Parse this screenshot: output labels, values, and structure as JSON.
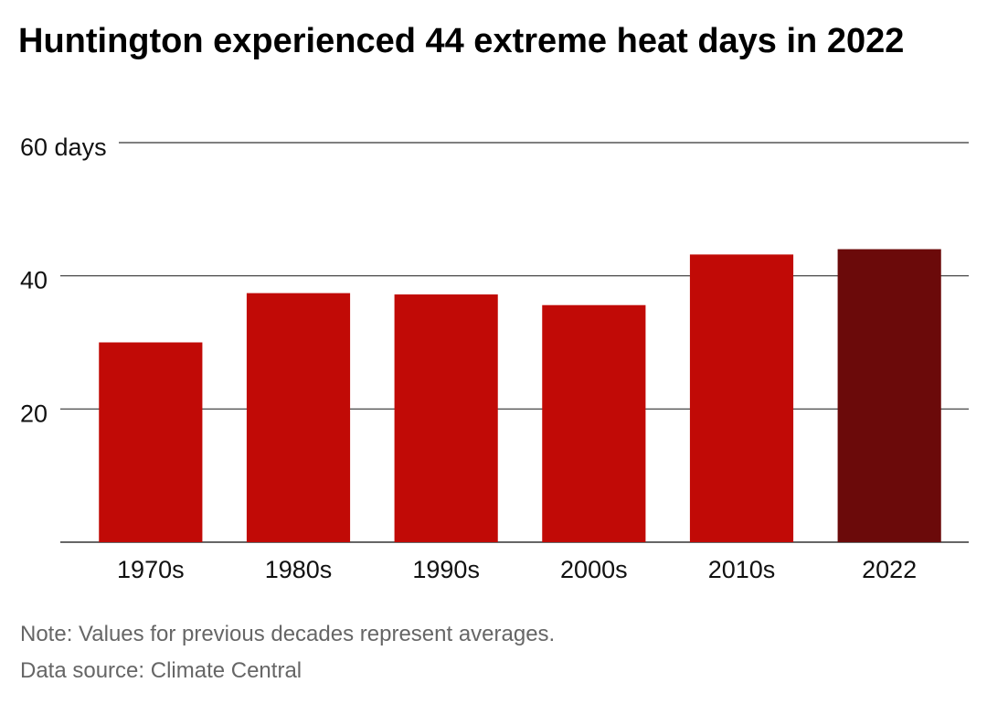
{
  "title": "Huntington experienced 44 extreme heat days in 2022",
  "colors": {
    "bar": "#c10a06",
    "highlight": "#6b0a0a",
    "grid": "#333333",
    "axis_text": "#111111",
    "note_text": "#666666"
  },
  "chart_data": {
    "type": "bar",
    "title": "Huntington experienced 44 extreme heat days in 2022",
    "categories": [
      "1970s",
      "1980s",
      "1990s",
      "2000s",
      "2010s",
      "2022"
    ],
    "values": [
      30,
      37.4,
      37.2,
      35.6,
      43.2,
      44
    ],
    "highlight_index": 5,
    "unit": "days",
    "ylim": [
      0,
      60
    ],
    "y_ticks": [
      20,
      40,
      60
    ],
    "y_tick_labels": [
      "20",
      "40",
      "60 days"
    ],
    "grid": true,
    "legend": "none"
  },
  "notes": {
    "note": "Note: Values for previous decades represent averages.",
    "source": "Data source: Climate Central"
  }
}
